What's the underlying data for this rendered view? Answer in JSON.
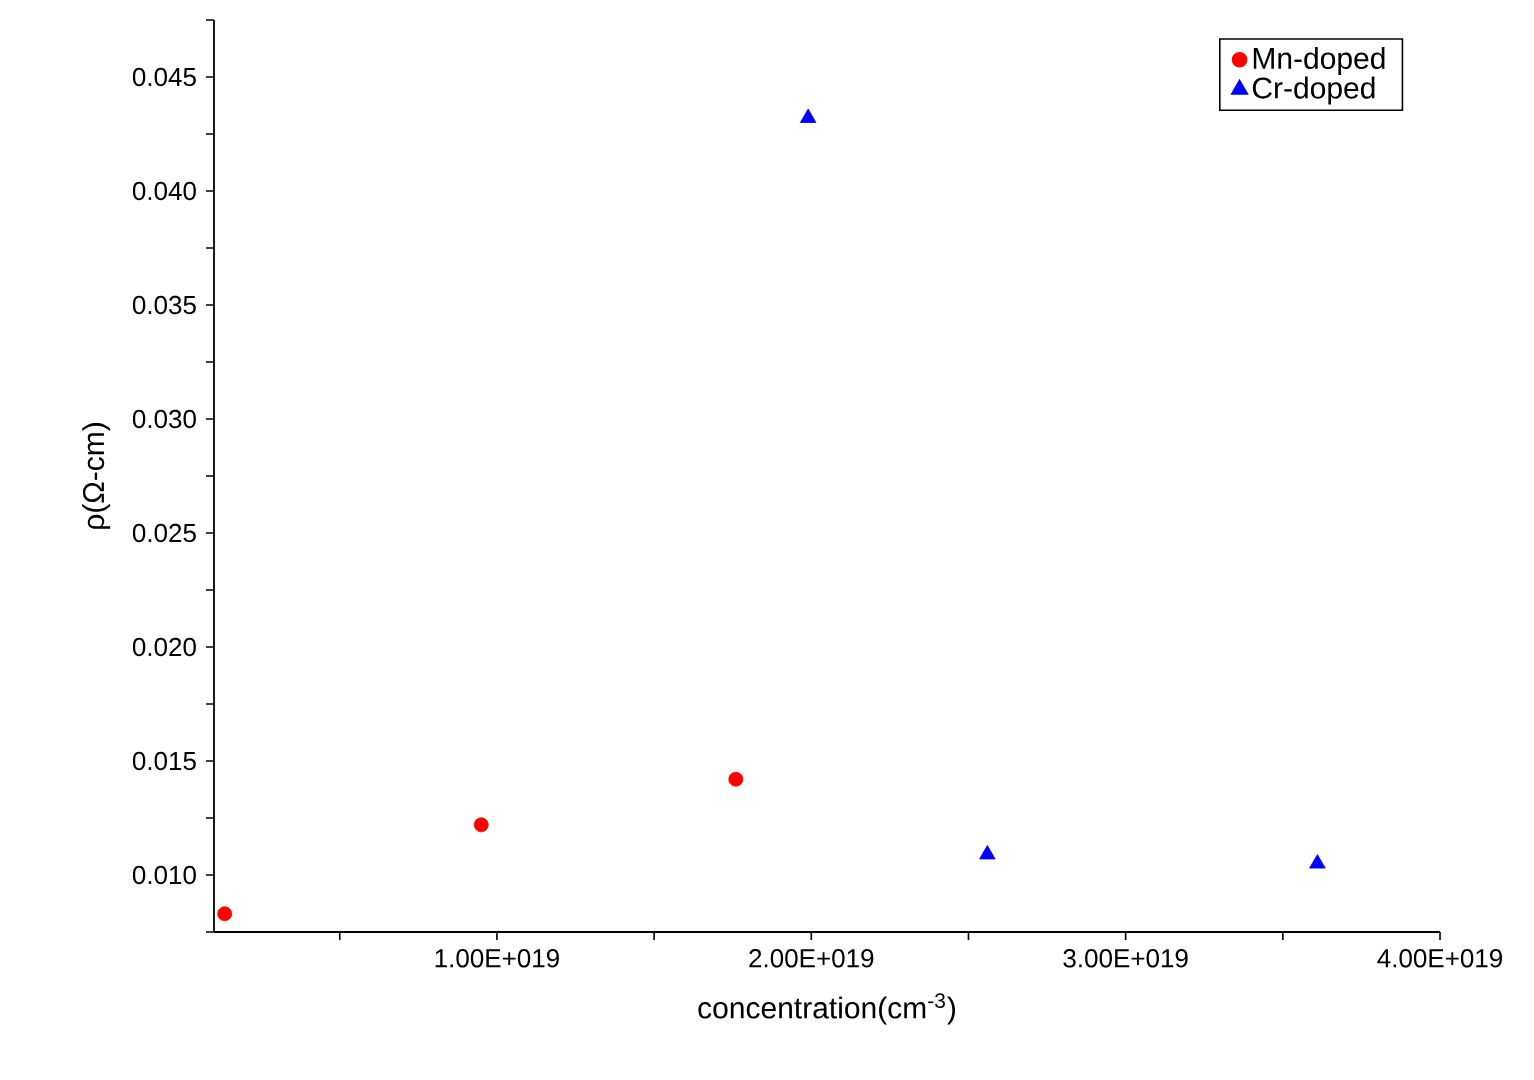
{
  "chart_data": {
    "type": "scatter",
    "xlabel": "concentration(cm$^{-3}$)",
    "ylabel": "ρ(Ω-cm)",
    "xlim": [
      1e+18,
      4e+19
    ],
    "ylim": [
      0.0075,
      0.0475
    ],
    "xticks": [
      {
        "value": 5e+18,
        "label": null
      },
      {
        "value": 1e+19,
        "label": "1.00E+019"
      },
      {
        "value": 1.5e+19,
        "label": null
      },
      {
        "value": 2e+19,
        "label": "2.00E+019"
      },
      {
        "value": 2.5e+19,
        "label": null
      },
      {
        "value": 3e+19,
        "label": "3.00E+019"
      },
      {
        "value": 3.5e+19,
        "label": null
      },
      {
        "value": 4e+19,
        "label": "4.00E+019"
      }
    ],
    "yticks": [
      {
        "value": 0.0075,
        "label": null
      },
      {
        "value": 0.01,
        "label": "0.010"
      },
      {
        "value": 0.0125,
        "label": null
      },
      {
        "value": 0.015,
        "label": "0.015"
      },
      {
        "value": 0.0175,
        "label": null
      },
      {
        "value": 0.02,
        "label": "0.020"
      },
      {
        "value": 0.0225,
        "label": null
      },
      {
        "value": 0.025,
        "label": "0.025"
      },
      {
        "value": 0.0275,
        "label": null
      },
      {
        "value": 0.03,
        "label": "0.030"
      },
      {
        "value": 0.0325,
        "label": null
      },
      {
        "value": 0.035,
        "label": "0.035"
      },
      {
        "value": 0.0375,
        "label": null
      },
      {
        "value": 0.04,
        "label": "0.040"
      },
      {
        "value": 0.0425,
        "label": null
      },
      {
        "value": 0.045,
        "label": "0.045"
      },
      {
        "value": 0.0475,
        "label": null
      }
    ],
    "legend": "top right",
    "grid": false,
    "series": [
      {
        "name": "Mn-doped",
        "color": "#ff0000",
        "marker": "circle",
        "x": [
          1.34e+18,
          9.5e+18,
          1.76e+19
        ],
        "values": [
          0.0083,
          0.0122,
          0.0142
        ]
      },
      {
        "name": "Cr-doped",
        "color": "#0000ff",
        "marker": "triangle",
        "x": [
          1.99e+19,
          2.56e+19,
          3.61e+19
        ],
        "values": [
          0.0432,
          0.0109,
          0.0105
        ]
      }
    ]
  }
}
